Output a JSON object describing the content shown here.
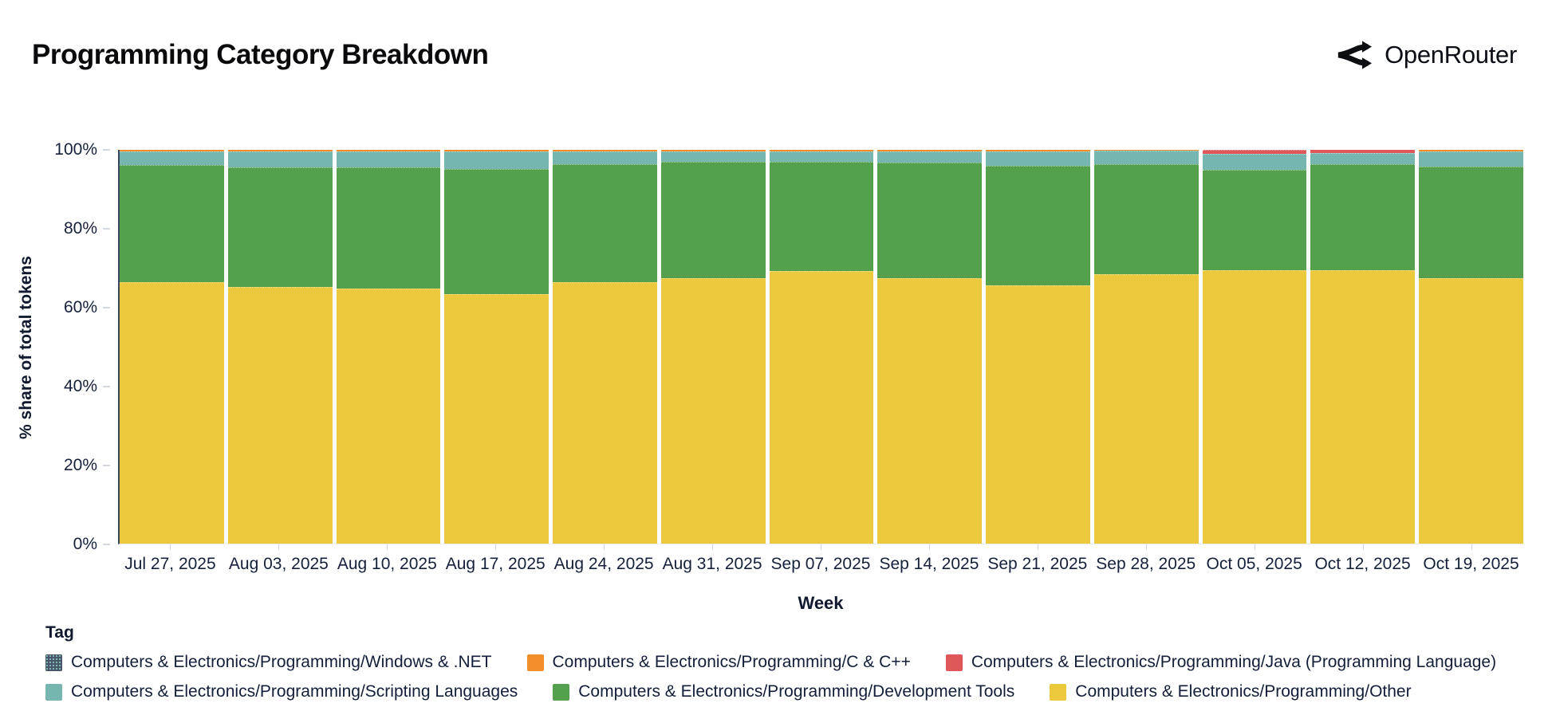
{
  "header": {
    "title": "Programming Category Breakdown",
    "brand": "OpenRouter"
  },
  "chart_data": {
    "type": "bar",
    "stacked": true,
    "normalized_percent": true,
    "title": "Programming Category Breakdown",
    "xlabel": "Week",
    "ylabel": "% share of total tokens",
    "ylim": [
      0,
      100
    ],
    "y_ticks": [
      "0%",
      "20%",
      "40%",
      "60%",
      "80%",
      "100%"
    ],
    "legend_title": "Tag",
    "legend_position": "bottom",
    "grid": false,
    "categories": [
      "Jul 27, 2025",
      "Aug 03, 2025",
      "Aug 10, 2025",
      "Aug 17, 2025",
      "Aug 24, 2025",
      "Aug 31, 2025",
      "Sep 07, 2025",
      "Sep 14, 2025",
      "Sep 21, 2025",
      "Sep 28, 2025",
      "Oct 05, 2025",
      "Oct 12, 2025",
      "Oct 19, 2025"
    ],
    "series": [
      {
        "name": "Computers & Electronics/Programming/Windows & .NET",
        "color": "#46536a",
        "pattern": "dots",
        "values": [
          0.05,
          0.05,
          0.05,
          0.05,
          0.05,
          0.05,
          0.05,
          0.05,
          0.05,
          0.05,
          0,
          0,
          0.05
        ]
      },
      {
        "name": "Computers & Electronics/Programming/C & C++",
        "color": "#f28e2b",
        "values": [
          0.35,
          0.35,
          0.35,
          0.35,
          0.25,
          0.25,
          0.25,
          0.25,
          0.35,
          0.15,
          0,
          0,
          0.35
        ]
      },
      {
        "name": "Computers & Electronics/Programming/Java (Programming Language)",
        "color": "#e05759",
        "values": [
          0,
          0,
          0,
          0,
          0,
          0,
          0,
          0,
          0,
          0,
          1.1,
          0.9,
          0
        ]
      },
      {
        "name": "Computers & Electronics/Programming/Scripting Languages",
        "color": "#76b5b0",
        "values": [
          3.4,
          4.0,
          4.1,
          4.5,
          3.4,
          2.7,
          2.8,
          3.0,
          3.7,
          3.5,
          4.0,
          2.8,
          3.9
        ]
      },
      {
        "name": "Computers & Electronics/Programming/Development Tools",
        "color": "#55a04c",
        "values": [
          29.7,
          30.4,
          30.7,
          31.8,
          30.0,
          29.5,
          27.6,
          29.3,
          30.3,
          27.8,
          25.5,
          26.8,
          28.2
        ]
      },
      {
        "name": "Computers & Electronics/Programming/Other",
        "color": "#ecc83d",
        "values": [
          66.5,
          65.2,
          64.8,
          63.3,
          66.3,
          67.5,
          69.3,
          67.4,
          65.6,
          68.5,
          69.4,
          69.5,
          67.5
        ]
      }
    ]
  }
}
